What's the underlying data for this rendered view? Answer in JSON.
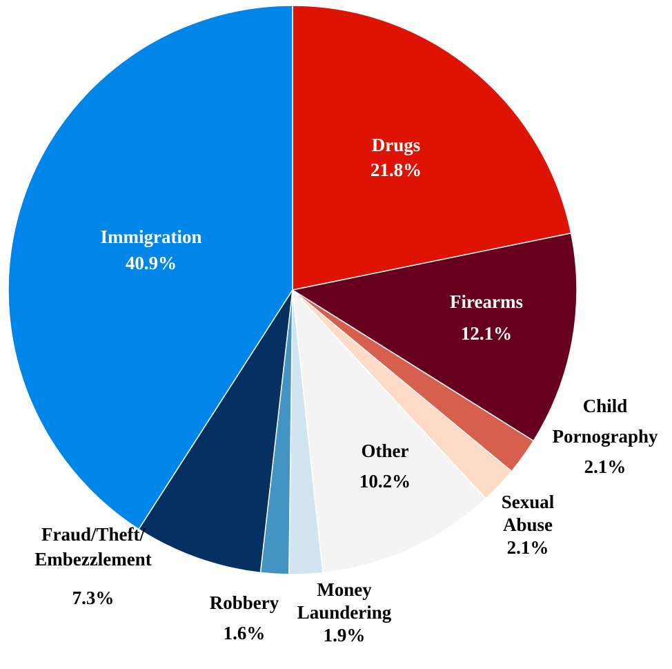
{
  "chart_data": {
    "type": "pie",
    "title": "",
    "slices": [
      {
        "label_lines": [
          "Drugs"
        ],
        "value": 21.8,
        "value_label": "21.8%",
        "color": "#de1304",
        "label_color": "#ffffff"
      },
      {
        "label_lines": [
          "Firearms"
        ],
        "value": 12.1,
        "value_label": "12.1%",
        "color": "#67001f",
        "label_color": "#ffffff"
      },
      {
        "label_lines": [
          "Child",
          "Pornography"
        ],
        "value": 2.1,
        "value_label": "2.1%",
        "color": "#d6604d",
        "label_color": "#000000"
      },
      {
        "label_lines": [
          "Sexual",
          "Abuse"
        ],
        "value": 2.1,
        "value_label": "2.1%",
        "color": "#fddbc7",
        "label_color": "#000000"
      },
      {
        "label_lines": [
          "Other"
        ],
        "value": 10.2,
        "value_label": "10.2%",
        "color": "#f4f4f4",
        "label_color": "#000000"
      },
      {
        "label_lines": [
          "Money",
          "Laundering"
        ],
        "value": 1.9,
        "value_label": "1.9%",
        "color": "#d1e5f0",
        "label_color": "#000000"
      },
      {
        "label_lines": [
          "Robbery"
        ],
        "value": 1.6,
        "value_label": "1.6%",
        "color": "#4393c3",
        "label_color": "#000000"
      },
      {
        "label_lines": [
          "Fraud/Theft/",
          "Embezzlement"
        ],
        "value": 7.3,
        "value_label": "7.3%",
        "color": "#053061",
        "label_color": "#000000"
      },
      {
        "label_lines": [
          "Immigration"
        ],
        "value": 40.9,
        "value_label": "40.9%",
        "color": "#0086e8",
        "label_color": "#ffffff"
      }
    ]
  }
}
